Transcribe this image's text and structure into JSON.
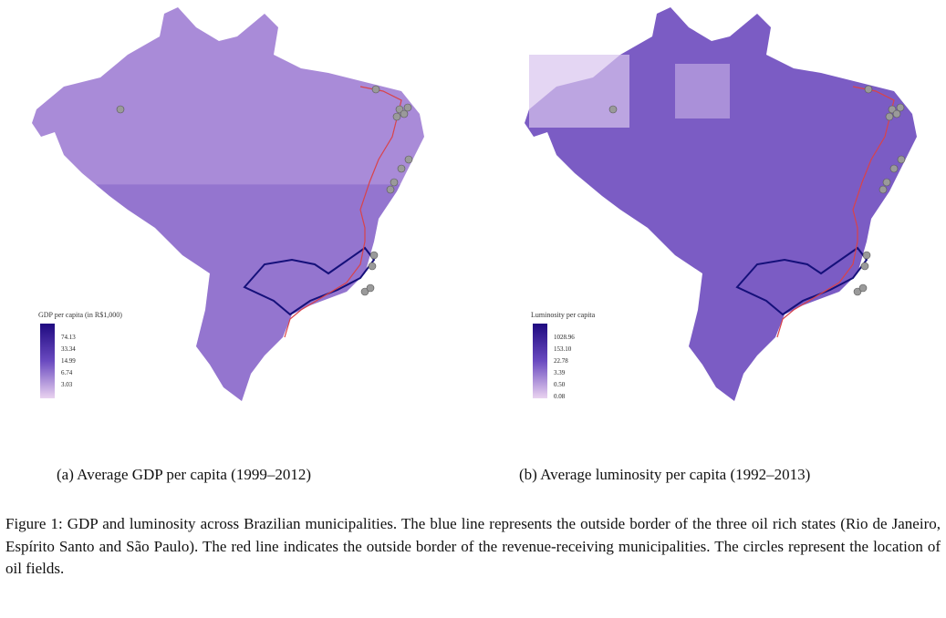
{
  "panels": [
    {
      "legend_title": "GDP per capita (in R$1,000)",
      "legend_values": [
        "74.13",
        "33.34",
        "14.99",
        "6.74",
        "3.03"
      ],
      "subcaption": "(a) Average GDP per capita (1999–2012)",
      "base_color": "#a98bd8"
    },
    {
      "legend_title": "Luminosity per capita",
      "legend_values": [
        "1028.96",
        "153.10",
        "22.78",
        "3.39",
        "0.50",
        "0.08"
      ],
      "subcaption": "(b) Average luminosity per capita (1992–2013)",
      "base_color": "#7b5cc4"
    }
  ],
  "caption": "Figure 1: GDP and luminosity across Brazilian municipalities. The blue line represents the outside border of the three oil rich states (Rio de Janeiro, Espírito Santo and São Paulo). The red line indicates the outside border of the revenue-receiving municipalities. The circles represent the location of oil fields.",
  "colors": {
    "state_border": "#15107a",
    "municipal_border": "#d9434a",
    "oil_field": "#9a9a9a"
  }
}
